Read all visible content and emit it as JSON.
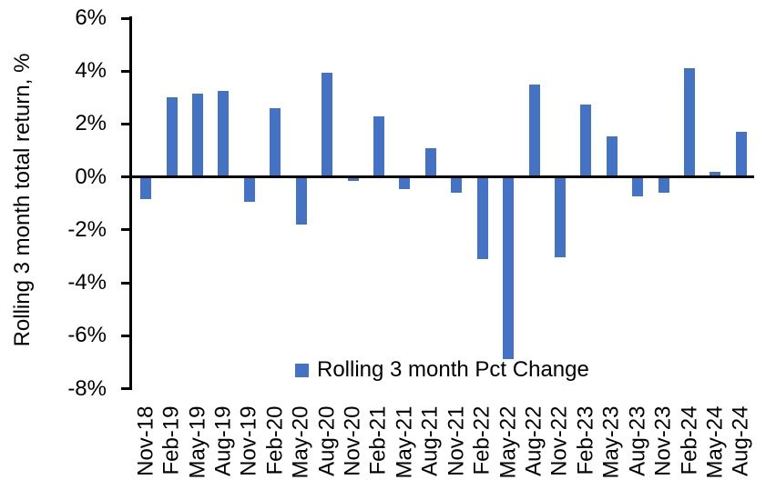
{
  "chart_data": {
    "type": "bar",
    "title": "",
    "xlabel": "",
    "ylabel": "Rolling 3 month total return, %",
    "legend": {
      "label": "Rolling 3 month Pct Change",
      "position": "bottom-center"
    },
    "bar_color": "#4472C4",
    "axis_color": "#000000",
    "background_color": "#ffffff",
    "grid": false,
    "ylim": [
      -8,
      6
    ],
    "ytick_values": [
      6,
      4,
      2,
      0,
      -2,
      -4,
      -6,
      -8
    ],
    "ytick_labels": [
      "6%",
      "4%",
      "2%",
      "0%",
      "-2%",
      "-4%",
      "-6%",
      "-8%"
    ],
    "categories": [
      "Nov-18",
      "Feb-19",
      "May-19",
      "Aug-19",
      "Nov-19",
      "Feb-20",
      "May-20",
      "Aug-20",
      "Nov-20",
      "Feb-21",
      "May-21",
      "Aug-21",
      "Nov-21",
      "Feb-22",
      "May-22",
      "Aug-22",
      "Nov-22",
      "Feb-23",
      "May-23",
      "Aug-23",
      "Nov-23",
      "Feb-24",
      "May-24",
      "Aug-24"
    ],
    "values": [
      -0.85,
      3.0,
      3.15,
      3.25,
      -0.95,
      2.6,
      -1.8,
      3.95,
      -0.15,
      2.3,
      -0.45,
      1.1,
      -0.6,
      -3.1,
      -6.9,
      3.5,
      -3.05,
      2.75,
      1.55,
      -0.75,
      -0.6,
      4.1,
      0.2,
      1.7
    ]
  }
}
